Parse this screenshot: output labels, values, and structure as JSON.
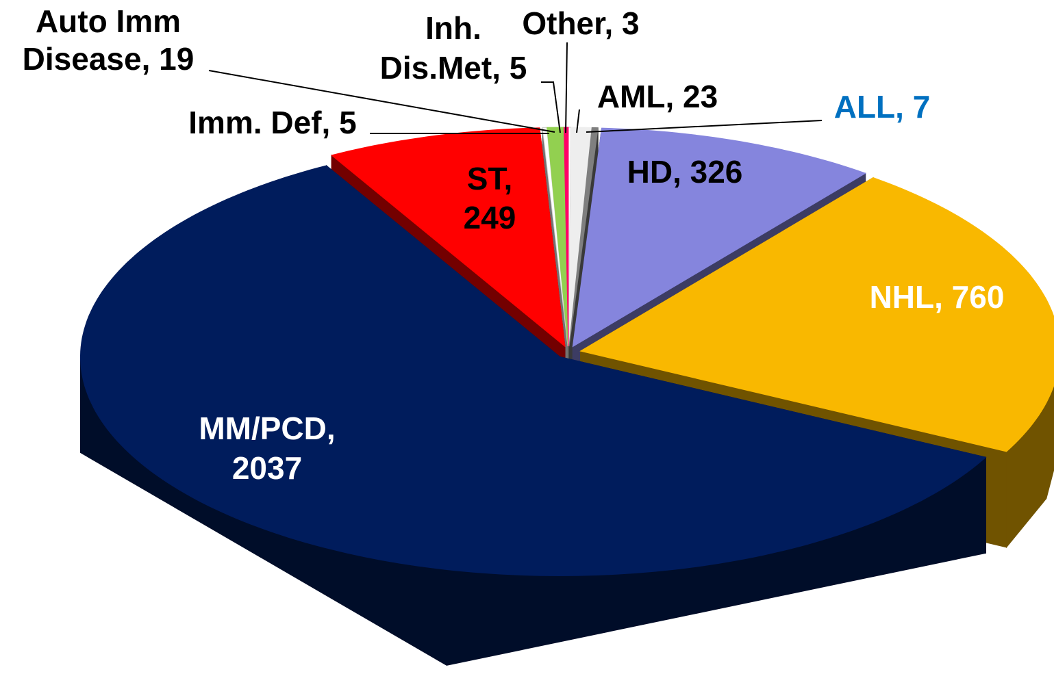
{
  "chart_data": {
    "type": "pie3d",
    "categories": [
      "Other",
      "AML",
      "ALL",
      "HD",
      "NHL",
      "MM/PCD",
      "ST",
      "Imm. Def",
      "Auto Imm Disease",
      "Inh. Dis.Met"
    ],
    "values": [
      3,
      23,
      7,
      326,
      760,
      2037,
      249,
      5,
      19,
      5
    ],
    "value_labels": [
      [
        "Other, 3"
      ],
      [
        "AML, 23"
      ],
      [
        "ALL, 7"
      ],
      [
        "HD, 326"
      ],
      [
        "NHL, 760"
      ],
      [
        "MM/PCD,",
        "2037"
      ],
      [
        "ST,",
        "249"
      ],
      [
        "Imm. Def, 5"
      ],
      [
        "Auto Imm",
        "Disease, 19"
      ],
      [
        "Inh.",
        "Dis.Met, 5"
      ]
    ],
    "colors": [
      "#ffffff",
      "#eeeeee",
      "#7f7f7f",
      "#8585dd",
      "#f9b800",
      "#001c5c",
      "#ff0000",
      "#ffffff",
      "#92d050",
      "#ff0066"
    ],
    "label_colors": [
      "#000000",
      "#000000",
      "#0070c0",
      "#000000",
      "#ffffff",
      "#ffffff",
      "#000000",
      "#000000",
      "#000000",
      "#000000"
    ]
  }
}
